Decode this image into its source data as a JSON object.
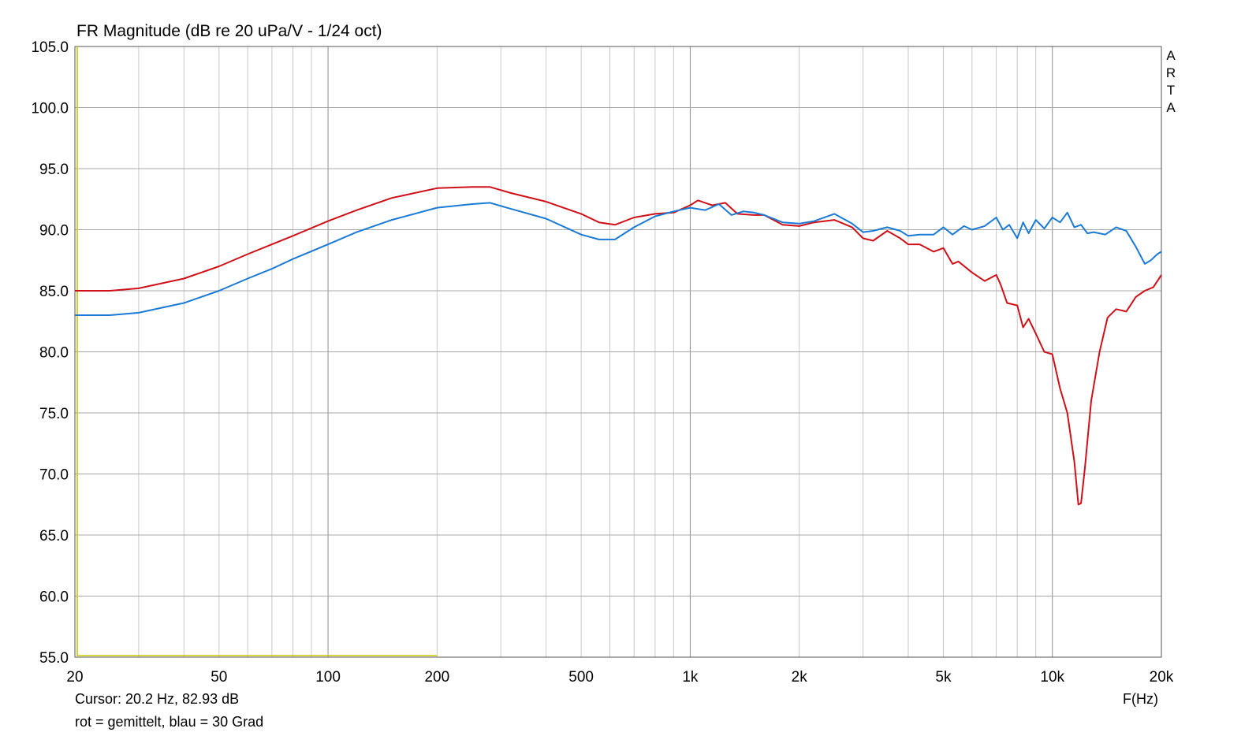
{
  "title": "FR Magnitude (dB re 20 uPa/V - 1/24 oct)",
  "cursor_text": "Cursor: 20.2 Hz, 82.93 dB",
  "legend_text": "rot = gemittelt, blau = 30 Grad",
  "brand": "ARTA",
  "chart_data": {
    "type": "line",
    "title": "FR Magnitude (dB re 20 uPa/V - 1/24 oct)",
    "xlabel": "F(Hz)",
    "ylabel": "",
    "x_scale": "log",
    "xlim": [
      20,
      20000
    ],
    "ylim": [
      55,
      105
    ],
    "grid": true,
    "y_ticks": [
      55,
      60,
      65,
      70,
      75,
      80,
      85,
      90,
      95,
      100,
      105
    ],
    "y_tick_labels": [
      "55.0",
      "60.0",
      "65.0",
      "70.0",
      "75.0",
      "80.0",
      "85.0",
      "90.0",
      "95.0",
      "100.0",
      "105.0"
    ],
    "x_ticks": [
      20,
      50,
      100,
      200,
      500,
      1000,
      2000,
      5000,
      10000,
      20000
    ],
    "x_tick_labels": [
      "20",
      "50",
      "100",
      "200",
      "500",
      "1k",
      "2k",
      "5k",
      "10k",
      "20k"
    ],
    "cursor_line": {
      "x": 20.2,
      "y": 55.0,
      "color": "#c8c800"
    },
    "series": [
      {
        "name": "rot = gemittelt",
        "color": "#d01018",
        "x": [
          20,
          25,
          30,
          40,
          50,
          60,
          70,
          80,
          100,
          120,
          150,
          200,
          250,
          280,
          320,
          400,
          500,
          560,
          620,
          700,
          800,
          900,
          1000,
          1050,
          1150,
          1250,
          1350,
          1500,
          1600,
          1800,
          2000,
          2200,
          2500,
          2800,
          3000,
          3200,
          3500,
          3800,
          4000,
          4300,
          4700,
          5000,
          5300,
          5500,
          6000,
          6500,
          7000,
          7200,
          7500,
          8000,
          8300,
          8600,
          9000,
          9500,
          10000,
          10500,
          11000,
          11500,
          11800,
          12000,
          12300,
          12800,
          13500,
          14200,
          15000,
          16000,
          17000,
          18000,
          19000,
          20000
        ],
        "values": [
          85.0,
          85.0,
          85.2,
          86.0,
          87.0,
          88.0,
          88.8,
          89.5,
          90.7,
          91.6,
          92.6,
          93.4,
          93.5,
          93.5,
          93.0,
          92.3,
          91.3,
          90.6,
          90.4,
          91.0,
          91.3,
          91.4,
          92.0,
          92.4,
          92.0,
          92.2,
          91.3,
          91.2,
          91.2,
          90.4,
          90.3,
          90.6,
          90.8,
          90.2,
          89.3,
          89.1,
          89.9,
          89.3,
          88.8,
          88.8,
          88.2,
          88.5,
          87.2,
          87.4,
          86.5,
          85.8,
          86.3,
          85.5,
          84.0,
          83.8,
          82.0,
          82.7,
          81.5,
          80.0,
          79.8,
          77.0,
          75.0,
          71.0,
          67.5,
          67.6,
          70.5,
          76.0,
          80.0,
          82.8,
          83.5,
          83.3,
          84.5,
          85.0,
          85.3,
          86.3
        ]
      },
      {
        "name": "blau = 30 Grad",
        "color": "#1a7ad6",
        "x": [
          20,
          25,
          30,
          40,
          50,
          60,
          70,
          80,
          100,
          120,
          150,
          200,
          250,
          280,
          320,
          400,
          500,
          560,
          620,
          700,
          800,
          900,
          1000,
          1100,
          1200,
          1300,
          1400,
          1500,
          1600,
          1800,
          2000,
          2200,
          2500,
          2800,
          3000,
          3200,
          3500,
          3800,
          4000,
          4300,
          4700,
          5000,
          5300,
          5700,
          6000,
          6500,
          7000,
          7300,
          7600,
          8000,
          8300,
          8600,
          9000,
          9500,
          10000,
          10500,
          11000,
          11500,
          12000,
          12500,
          13000,
          14000,
          15000,
          16000,
          17000,
          18000,
          18700,
          19500,
          20000
        ],
        "values": [
          83.0,
          83.0,
          83.2,
          84.0,
          85.0,
          86.0,
          86.8,
          87.6,
          88.8,
          89.8,
          90.8,
          91.8,
          92.1,
          92.2,
          91.7,
          90.9,
          89.6,
          89.2,
          89.2,
          90.2,
          91.1,
          91.5,
          91.8,
          91.6,
          92.1,
          91.2,
          91.5,
          91.4,
          91.2,
          90.6,
          90.5,
          90.7,
          91.3,
          90.5,
          89.8,
          89.9,
          90.2,
          89.9,
          89.5,
          89.6,
          89.6,
          90.2,
          89.6,
          90.3,
          90.0,
          90.3,
          91.0,
          90.0,
          90.4,
          89.3,
          90.6,
          89.7,
          90.8,
          90.1,
          91.0,
          90.6,
          91.4,
          90.2,
          90.4,
          89.7,
          89.8,
          89.6,
          90.2,
          89.9,
          88.6,
          87.2,
          87.5,
          88.0,
          88.2
        ]
      }
    ]
  }
}
